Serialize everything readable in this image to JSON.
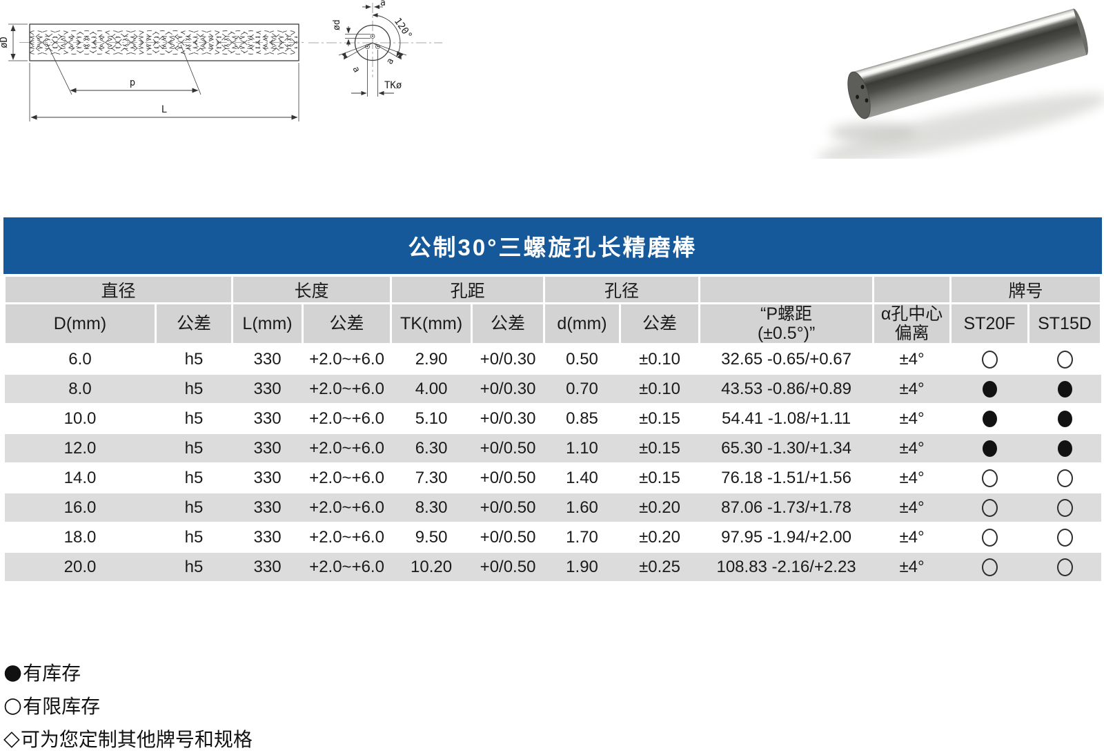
{
  "colors": {
    "title_bar_bg": "#15599b",
    "header_cell_bg": "#d3d3d3",
    "row_alt_bg": "#dcdcdc",
    "stock_dot": "#121212"
  },
  "diagram": {
    "side_view": {
      "diameter_label": "øD",
      "pitch_label": "p",
      "length_label": "L"
    },
    "section_view": {
      "offset_label_top": "a",
      "hole_diameter_label": "ød",
      "angle_label": "120°",
      "offset_label_left": "a",
      "offset_label_right": "a",
      "hole_circle_label": "TKø"
    }
  },
  "table": {
    "title": "公制30°三螺旋孔长精磨棒",
    "groups": [
      {
        "label": "直径",
        "span": 2
      },
      {
        "label": "长度",
        "span": 2
      },
      {
        "label": "孔距",
        "span": 2
      },
      {
        "label": "孔径",
        "span": 2
      },
      {
        "label": "",
        "span": 1
      },
      {
        "label": "",
        "span": 1
      },
      {
        "label": "牌号",
        "span": 2
      }
    ],
    "columns": [
      {
        "label": "D(mm)"
      },
      {
        "label": "公差"
      },
      {
        "label": "L(mm)"
      },
      {
        "label": "公差"
      },
      {
        "label": "TK(mm)"
      },
      {
        "label": "公差"
      },
      {
        "label": "d(mm)"
      },
      {
        "label": "公差"
      },
      {
        "label": "“P螺距",
        "label2": "(±0.5°)”"
      },
      {
        "label": "α孔中心",
        "label2": "偏离"
      },
      {
        "label": "ST20F"
      },
      {
        "label": "ST15D"
      }
    ],
    "rows": [
      [
        "6.0",
        "h5",
        "330",
        "+2.0~+6.0",
        "2.90",
        "+0/0.30",
        "0.50",
        "±0.10",
        "32.65 -0.65/+0.67",
        "±4°",
        "hollow",
        "hollow"
      ],
      [
        "8.0",
        "h5",
        "330",
        "+2.0~+6.0",
        "4.00",
        "+0/0.30",
        "0.70",
        "±0.10",
        "43.53 -0.86/+0.89",
        "±4°",
        "filled",
        "filled"
      ],
      [
        "10.0",
        "h5",
        "330",
        "+2.0~+6.0",
        "5.10",
        "+0/0.30",
        "0.85",
        "±0.15",
        "54.41 -1.08/+1.11",
        "±4°",
        "filled",
        "filled"
      ],
      [
        "12.0",
        "h5",
        "330",
        "+2.0~+6.0",
        "6.30",
        "+0/0.50",
        "1.10",
        "±0.15",
        "65.30 -1.30/+1.34",
        "±4°",
        "filled",
        "filled"
      ],
      [
        "14.0",
        "h5",
        "330",
        "+2.0~+6.0",
        "7.30",
        "+0/0.50",
        "1.40",
        "±0.15",
        "76.18 -1.51/+1.56",
        "±4°",
        "hollow",
        "hollow"
      ],
      [
        "16.0",
        "h5",
        "330",
        "+2.0~+6.0",
        "8.30",
        "+0/0.50",
        "1.60",
        "±0.20",
        "87.06 -1.73/+1.78",
        "±4°",
        "hollow",
        "hollow"
      ],
      [
        "18.0",
        "h5",
        "330",
        "+2.0~+6.0",
        "9.50",
        "+0/0.50",
        "1.70",
        "±0.20",
        "97.95 -1.94/+2.00",
        "±4°",
        "hollow",
        "hollow"
      ],
      [
        "20.0",
        "h5",
        "330",
        "+2.0~+6.0",
        "10.20",
        "+0/0.50",
        "1.90",
        "±0.25",
        "108.83 -2.16/+2.23",
        "±4°",
        "hollow",
        "hollow"
      ]
    ]
  },
  "legend": {
    "items": [
      {
        "symbol": "●",
        "label": "有库存"
      },
      {
        "symbol": "○",
        "label": "有限库存"
      },
      {
        "symbol": "◇",
        "label": "可为您定制其他牌号和规格"
      }
    ]
  }
}
